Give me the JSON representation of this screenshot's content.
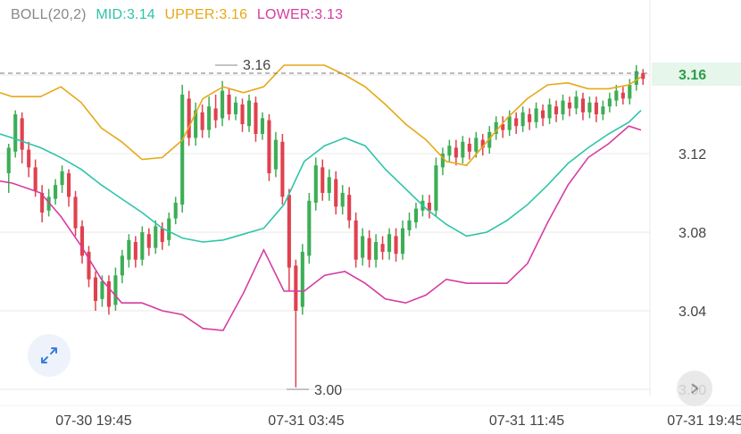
{
  "indicator": {
    "name": "BOLL(20,2)",
    "mid_label": "MID:3.14",
    "upper_label": "UPPER:3.16",
    "lower_label": "LOWER:3.13"
  },
  "colors": {
    "name": "#888888",
    "mid": "#2ec4a8",
    "upper": "#e6a817",
    "lower": "#d63ca0",
    "up_candle": "#3dae55",
    "down_candle": "#e0414e",
    "grid": "#e8e8e8",
    "price_tag_bg": "#e6f6ea",
    "price_tag_text": "#2a9d4a",
    "axis_text": "#444444"
  },
  "icons": {
    "expand": "expand-arrows-icon",
    "more": "chevron-icon"
  },
  "chart_data": {
    "type": "candlestick",
    "ylim": [
      3.0,
      3.18
    ],
    "y_ticks": [
      "3.16",
      "3.12",
      "3.08",
      "3.04",
      "3.00"
    ],
    "x_ticks": [
      "07-30 19:45",
      "07-31 03:45",
      "07-31 11:45",
      "07-31 19:45"
    ],
    "grid": true,
    "current_price": "3.16",
    "annotations": {
      "high": "3.16",
      "low": "3.00"
    },
    "candles": [
      [
        3.11,
        3.123,
        3.1,
        3.125
      ],
      [
        3.121,
        3.14,
        3.118,
        3.142
      ],
      [
        3.138,
        3.122,
        3.115,
        3.141
      ],
      [
        3.122,
        3.113,
        3.108,
        3.126
      ],
      [
        3.113,
        3.101,
        3.098,
        3.117
      ],
      [
        3.1,
        3.09,
        3.085,
        3.104
      ],
      [
        3.091,
        3.098,
        3.088,
        3.102
      ],
      [
        3.097,
        3.104,
        3.094,
        3.107
      ],
      [
        3.104,
        3.111,
        3.1,
        3.114
      ],
      [
        3.11,
        3.098,
        3.093,
        3.112
      ],
      [
        3.098,
        3.082,
        3.078,
        3.101
      ],
      [
        3.083,
        3.068,
        3.064,
        3.086
      ],
      [
        3.07,
        3.056,
        3.052,
        3.073
      ],
      [
        3.057,
        3.045,
        3.04,
        3.06
      ],
      [
        3.046,
        3.055,
        3.042,
        3.058
      ],
      [
        3.055,
        3.042,
        3.038,
        3.058
      ],
      [
        3.043,
        3.058,
        3.04,
        3.062
      ],
      [
        3.058,
        3.068,
        3.054,
        3.071
      ],
      [
        3.066,
        3.076,
        3.062,
        3.079
      ],
      [
        3.075,
        3.066,
        3.062,
        3.078
      ],
      [
        3.066,
        3.08,
        3.063,
        3.083
      ],
      [
        3.079,
        3.072,
        3.068,
        3.082
      ],
      [
        3.072,
        3.083,
        3.069,
        3.086
      ],
      [
        3.082,
        3.075,
        3.071,
        3.085
      ],
      [
        3.076,
        3.087,
        3.073,
        3.09
      ],
      [
        3.087,
        3.095,
        3.084,
        3.098
      ],
      [
        3.094,
        3.15,
        3.09,
        3.155
      ],
      [
        3.148,
        3.128,
        3.124,
        3.152
      ],
      [
        3.128,
        3.142,
        3.124,
        3.146
      ],
      [
        3.141,
        3.132,
        3.128,
        3.145
      ],
      [
        3.132,
        3.144,
        3.128,
        3.149
      ],
      [
        3.143,
        3.137,
        3.133,
        3.15
      ],
      [
        3.138,
        3.152,
        3.134,
        3.157
      ],
      [
        3.15,
        3.14,
        3.137,
        3.153
      ],
      [
        3.14,
        3.146,
        3.137,
        3.149
      ],
      [
        3.145,
        3.135,
        3.131,
        3.148
      ],
      [
        3.134,
        3.147,
        3.131,
        3.15
      ],
      [
        3.146,
        3.13,
        3.126,
        3.149
      ],
      [
        3.13,
        3.138,
        3.127,
        3.141
      ],
      [
        3.137,
        3.11,
        3.106,
        3.14
      ],
      [
        3.112,
        3.127,
        3.108,
        3.131
      ],
      [
        3.126,
        3.098,
        3.094,
        3.13
      ],
      [
        3.099,
        3.062,
        3.05,
        3.102
      ],
      [
        3.063,
        3.04,
        3.001,
        3.066
      ],
      [
        3.042,
        3.07,
        3.038,
        3.074
      ],
      [
        3.068,
        3.096,
        3.064,
        3.1
      ],
      [
        3.095,
        3.114,
        3.091,
        3.118
      ],
      [
        3.113,
        3.1,
        3.096,
        3.117
      ],
      [
        3.1,
        3.108,
        3.096,
        3.112
      ],
      [
        3.107,
        3.093,
        3.089,
        3.111
      ],
      [
        3.093,
        3.1,
        3.089,
        3.104
      ],
      [
        3.099,
        3.086,
        3.082,
        3.103
      ],
      [
        3.086,
        3.066,
        3.062,
        3.09
      ],
      [
        3.067,
        3.078,
        3.063,
        3.082
      ],
      [
        3.077,
        3.066,
        3.062,
        3.081
      ],
      [
        3.066,
        3.075,
        3.062,
        3.079
      ],
      [
        3.074,
        3.07,
        3.066,
        3.078
      ],
      [
        3.07,
        3.079,
        3.066,
        3.082
      ],
      [
        3.078,
        3.069,
        3.065,
        3.082
      ],
      [
        3.069,
        3.082,
        3.066,
        3.086
      ],
      [
        3.081,
        3.086,
        3.078,
        3.09
      ],
      [
        3.085,
        3.092,
        3.082,
        3.095
      ],
      [
        3.091,
        3.096,
        3.088,
        3.099
      ],
      [
        3.095,
        3.091,
        3.087,
        3.099
      ],
      [
        3.091,
        3.114,
        3.088,
        3.118
      ],
      [
        3.113,
        3.12,
        3.109,
        3.123
      ],
      [
        3.119,
        3.124,
        3.116,
        3.127
      ],
      [
        3.123,
        3.118,
        3.114,
        3.127
      ],
      [
        3.118,
        3.126,
        3.115,
        3.129
      ],
      [
        3.125,
        3.121,
        3.117,
        3.128
      ],
      [
        3.121,
        3.128,
        3.118,
        3.131
      ],
      [
        3.127,
        3.123,
        3.119,
        3.13
      ],
      [
        3.123,
        3.131,
        3.12,
        3.134
      ],
      [
        3.13,
        3.136,
        3.127,
        3.139
      ],
      [
        3.135,
        3.132,
        3.128,
        3.139
      ],
      [
        3.132,
        3.139,
        3.129,
        3.142
      ],
      [
        3.138,
        3.134,
        3.13,
        3.141
      ],
      [
        3.134,
        3.141,
        3.131,
        3.144
      ],
      [
        3.14,
        3.136,
        3.132,
        3.143
      ],
      [
        3.136,
        3.143,
        3.133,
        3.146
      ],
      [
        3.142,
        3.138,
        3.134,
        3.145
      ],
      [
        3.138,
        3.145,
        3.135,
        3.148
      ],
      [
        3.144,
        3.14,
        3.136,
        3.147
      ],
      [
        3.14,
        3.147,
        3.137,
        3.15
      ],
      [
        3.146,
        3.143,
        3.139,
        3.149
      ],
      [
        3.143,
        3.149,
        3.14,
        3.152
      ],
      [
        3.148,
        3.141,
        3.137,
        3.151
      ],
      [
        3.141,
        3.146,
        3.138,
        3.149
      ],
      [
        3.146,
        3.14,
        3.136,
        3.149
      ],
      [
        3.14,
        3.144,
        3.137,
        3.147
      ],
      [
        3.144,
        3.148,
        3.141,
        3.151
      ],
      [
        3.147,
        3.152,
        3.144,
        3.155
      ],
      [
        3.151,
        3.148,
        3.145,
        3.154
      ],
      [
        3.148,
        3.155,
        3.145,
        3.158
      ],
      [
        3.155,
        3.162,
        3.152,
        3.165
      ],
      [
        3.161,
        3.158,
        3.155,
        3.163
      ]
    ],
    "mid": [
      [
        3.13,
        3.128,
        3.123,
        3.118,
        3.112,
        3.104,
        3.097,
        3.09,
        3.082,
        3.077,
        3.075,
        3.076,
        3.079,
        3.082,
        3.094,
        3.116,
        3.124,
        3.128,
        3.124,
        3.112,
        3.102,
        3.092,
        3.084,
        3.078,
        3.08,
        3.086,
        3.094,
        3.104,
        3.115,
        3.123,
        3.13,
        3.136,
        3.142
      ]
    ],
    "upper": [
      [
        3.151,
        3.149,
        3.149,
        3.154,
        3.146,
        3.133,
        3.126,
        3.117,
        3.118,
        3.127,
        3.148,
        3.154,
        3.151,
        3.154,
        3.165,
        3.165,
        3.165,
        3.16,
        3.154,
        3.145,
        3.135,
        3.127,
        3.116,
        3.114,
        3.126,
        3.138,
        3.148,
        3.155,
        3.156,
        3.153,
        3.153,
        3.155,
        3.159
      ]
    ],
    "lower": [
      [
        3.106,
        3.105,
        3.1,
        3.088,
        3.073,
        3.056,
        3.044,
        3.044,
        3.04,
        3.038,
        3.031,
        3.03,
        3.049,
        3.071,
        3.05,
        3.05,
        3.058,
        3.06,
        3.054,
        3.046,
        3.044,
        3.048,
        3.056,
        3.054,
        3.054,
        3.054,
        3.064,
        3.085,
        3.104,
        3.118,
        3.125,
        3.134,
        3.132
      ]
    ],
    "band_x_fraction": [
      0,
      0.03,
      0.1,
      0.15,
      0.2,
      0.25,
      0.3,
      0.35,
      0.4,
      0.45,
      0.5,
      0.55,
      0.6,
      0.65,
      0.7,
      0.75,
      0.8,
      0.85,
      0.9,
      0.95,
      1.0,
      1.05,
      1.1,
      1.15,
      1.2,
      1.25,
      1.3,
      1.35,
      1.4,
      1.45,
      1.5,
      1.55,
      1.58
    ]
  }
}
